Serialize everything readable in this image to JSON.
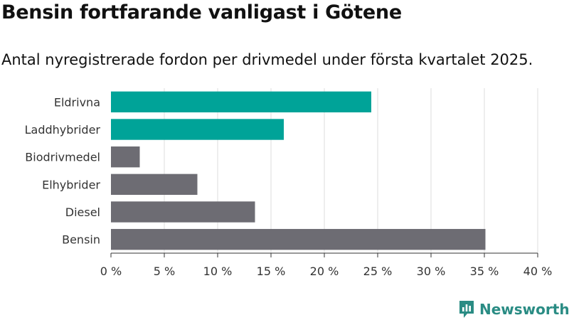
{
  "header": {
    "title": "Bensin fortfarande vanligast i Götene",
    "subtitle": "Antal nyregistrerade fordon per drivmedel under första kvartalet 2025."
  },
  "brand": {
    "name": "Newsworthy",
    "color": "#2a8c84"
  },
  "colors": {
    "highlight": "#00a398",
    "default": "#6d6c73",
    "grid": "#dddddd",
    "axis": "#333333"
  },
  "chart_data": {
    "type": "bar",
    "orientation": "horizontal",
    "categories": [
      "Eldrivna",
      "Laddhybrider",
      "Biodrivmedel",
      "Elhybrider",
      "Diesel",
      "Bensin"
    ],
    "values": [
      24.4,
      16.2,
      2.7,
      8.1,
      13.5,
      35.1
    ],
    "highlighted": [
      true,
      true,
      false,
      false,
      false,
      false
    ],
    "xlim": [
      0,
      40
    ],
    "xticks": [
      0,
      5,
      10,
      15,
      20,
      25,
      30,
      35,
      40
    ],
    "tick_suffix": " %",
    "grid": true,
    "legend": "none"
  }
}
